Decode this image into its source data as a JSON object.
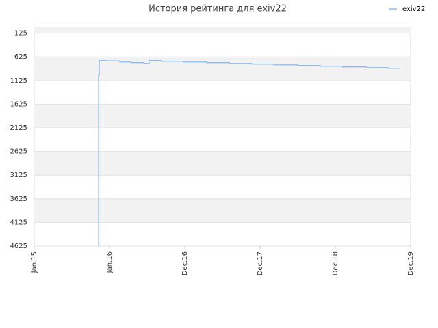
{
  "chart_data": {
    "type": "line",
    "title": "История рейтинга для exiv22",
    "series": [
      {
        "name": "exiv22",
        "color": "#88bbee",
        "x": [
          2015.855,
          2015.855,
          2015.855,
          2015.864,
          2015.955,
          2016.136,
          2016.291,
          2016.455,
          2016.527,
          2016.682,
          2016.982,
          2017.291,
          2017.591,
          2017.891,
          2018.182,
          2018.5,
          2018.8,
          2019.091,
          2019.409,
          2019.7,
          2019.864
        ],
        "values": [
          4625,
          1587,
          1008,
          704,
          710,
          733,
          747,
          762,
          704,
          718,
          733,
          747,
          762,
          776,
          791,
          805,
          820,
          834,
          849,
          863,
          863
        ]
      }
    ],
    "step": true,
    "invert_y": true,
    "ylim": [
      0,
      4625
    ],
    "yticks": [
      125,
      625,
      1125,
      1625,
      2125,
      2625,
      3125,
      3625,
      4125,
      4625
    ],
    "xlim": [
      2015,
      2020
    ],
    "xticks": [
      {
        "value": 2015,
        "label": "Jan.15"
      },
      {
        "value": 2016,
        "label": "Jan.16"
      },
      {
        "value": 2017,
        "label": "Dec.16"
      },
      {
        "value": 2018,
        "label": "Dec.17"
      },
      {
        "value": 2019,
        "label": "Dec.18"
      },
      {
        "value": 2020,
        "label": "Dec.19"
      }
    ],
    "legend": "top-right",
    "bands": true
  }
}
